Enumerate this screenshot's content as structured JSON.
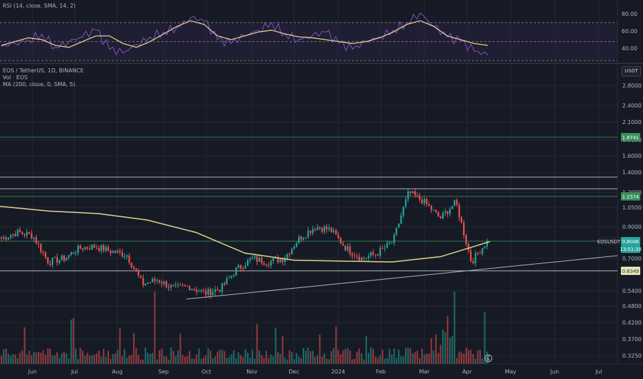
{
  "colors": {
    "background": "#161a25",
    "grid": "#242833",
    "text": "#b2b5be",
    "up": "#26a69a",
    "down": "#ef5350",
    "ma200": "#d9cc8c",
    "rsi_line": "#7e57c2",
    "rsi_ma": "#e6d08e",
    "rsi_band": "#2a2340",
    "support_green": "#3a8f5a",
    "resistance_white": "#d1d4dc",
    "trendline": "#b2b5be"
  },
  "rsi_panel": {
    "legend": "RSI (14, close, SMA, 14, 2)",
    "levels": [
      "80.00",
      "60.00",
      "40.00"
    ]
  },
  "main_panel": {
    "symbol_title": "EOS / TetherUS, 1D, BINANCE",
    "volume_label": "Vol · EOS",
    "ma_label": "MA (200, close, 0, SMA, 5)",
    "currency_badge": "USDT",
    "price_labels": [
      "2.8000",
      "2.4000",
      "2.1000",
      "1.8000",
      "1.6000",
      "1.4000",
      "1.2000",
      "1.0500",
      "0.9000",
      "0.7000",
      "0.5400",
      "0.4800",
      "0.4200",
      "0.3700",
      "0.3250"
    ],
    "tags": [
      {
        "name": "level-1-8741",
        "text": "1.8741",
        "color": "#3a8f5a",
        "text_color": "#ffffff"
      },
      {
        "name": "level-1-1574",
        "text": "1.1574",
        "color": "#3a8f5a",
        "text_color": "#ffffff"
      },
      {
        "name": "current-price",
        "text": "0.8046",
        "color": "#26a69a",
        "text_color": "#ffffff"
      },
      {
        "name": "current-symbol",
        "text": "EOSUSDT",
        "color": "#1e222d",
        "text_color": "#d1d4dc"
      },
      {
        "name": "countdown",
        "text": "13:51:30",
        "color": "#26a69a",
        "text_color": "#ffffff"
      },
      {
        "name": "level-0-6349",
        "text": "0.6349",
        "color": "#e0e3b8",
        "text_color": "#333333"
      }
    ],
    "date_labels": [
      "Jun",
      "Jul",
      "Aug",
      "Sep",
      "Oct",
      "Nov",
      "Dec",
      "2024",
      "Feb",
      "Mar",
      "Apr",
      "May",
      "Jun",
      "Jul"
    ]
  },
  "chart_data": {
    "type": "candlestick",
    "symbol": "EOS / TetherUS",
    "interval": "1D",
    "exchange": "BINANCE",
    "x": [
      "Jun",
      "Jul",
      "Aug",
      "Sep",
      "Oct",
      "Nov",
      "Dec",
      "2024",
      "Feb",
      "Mar",
      "Apr",
      "May",
      "Jun",
      "Jul"
    ],
    "price_scale": "log",
    "horizontal_levels": [
      1.8741,
      1.35,
      1.22,
      1.1574,
      0.8,
      0.6349
    ],
    "trendline": {
      "from": [
        "Sep",
        0.51
      ],
      "to": [
        "Jul",
        0.72
      ]
    },
    "close_path": [
      [
        "Jun",
        0.82
      ],
      [
        "Jun",
        0.86
      ],
      [
        "Jun",
        0.84
      ],
      [
        "Jul",
        0.68
      ],
      [
        "Jul",
        0.7
      ],
      [
        "Jul",
        0.76
      ],
      [
        "Aug",
        0.77
      ],
      [
        "Aug",
        0.74
      ],
      [
        "Aug",
        0.72
      ],
      [
        "Sep",
        0.57
      ],
      [
        "Sep",
        0.59
      ],
      [
        "Sep",
        0.55
      ],
      [
        "Oct",
        0.56
      ],
      [
        "Oct",
        0.53
      ],
      [
        "Oct",
        0.55
      ],
      [
        "Nov",
        0.64
      ],
      [
        "Nov",
        0.7
      ],
      [
        "Nov",
        0.68
      ],
      [
        "Dec",
        0.7
      ],
      [
        "Dec",
        0.82
      ],
      [
        "Dec",
        0.9
      ],
      [
        "2024",
        0.88
      ],
      [
        "2024",
        0.76
      ],
      [
        "Feb",
        0.7
      ],
      [
        "Feb",
        0.73
      ],
      [
        "Feb",
        0.8
      ],
      [
        "Mar",
        1.2
      ],
      [
        "Mar",
        1.1
      ],
      [
        "Mar",
        0.96
      ],
      [
        "Apr",
        1.1
      ],
      [
        "Apr",
        0.68
      ],
      [
        "Apr",
        0.8046
      ]
    ],
    "ma200_path": [
      [
        "Jun",
        1.06
      ],
      [
        "Jul",
        1.02
      ],
      [
        "Aug",
        1.0
      ],
      [
        "Sep",
        0.95
      ],
      [
        "Oct",
        0.86
      ],
      [
        "Nov",
        0.73
      ],
      [
        "Dec",
        0.69
      ],
      [
        "2024",
        0.685
      ],
      [
        "Feb",
        0.68
      ],
      [
        "Mar",
        0.71
      ],
      [
        "Apr",
        0.8
      ]
    ],
    "rsi": {
      "levels": [
        80,
        60,
        40
      ],
      "path": [
        45,
        48,
        52,
        58,
        44,
        50,
        55,
        62,
        42,
        38,
        47,
        55,
        60,
        65,
        75,
        72,
        52,
        48,
        56,
        62,
        70,
        58,
        52,
        56,
        60,
        48,
        42,
        50,
        55,
        62,
        70,
        80,
        66,
        55,
        50,
        40,
        36
      ],
      "ma_path": [
        46,
        50,
        54,
        52,
        46,
        44,
        50,
        56,
        56,
        48,
        44,
        50,
        58,
        66,
        72,
        68,
        56,
        52,
        56,
        60,
        62,
        58,
        55,
        54,
        52,
        50,
        48,
        50,
        54,
        60,
        68,
        72,
        66,
        56,
        52,
        48,
        46
      ]
    }
  }
}
